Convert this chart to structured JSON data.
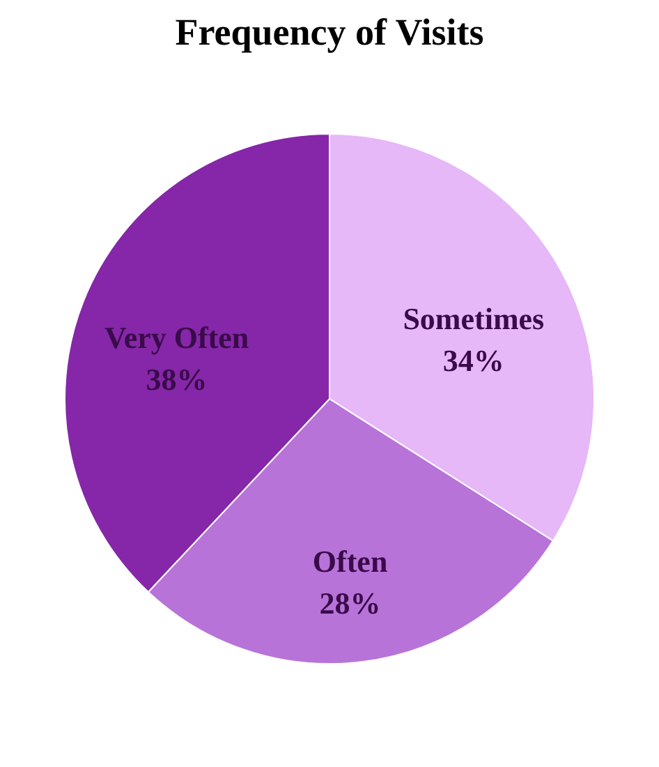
{
  "chart_data": {
    "type": "pie",
    "title": "Frequency of Visits",
    "categories": [
      "Sometimes",
      "Often",
      "Very Often"
    ],
    "values": [
      34,
      28,
      38
    ],
    "colors": [
      "#e6b8f7",
      "#b873d9",
      "#8527a8"
    ],
    "value_labels": [
      "34%",
      "28%",
      "38%"
    ],
    "legend": false
  }
}
